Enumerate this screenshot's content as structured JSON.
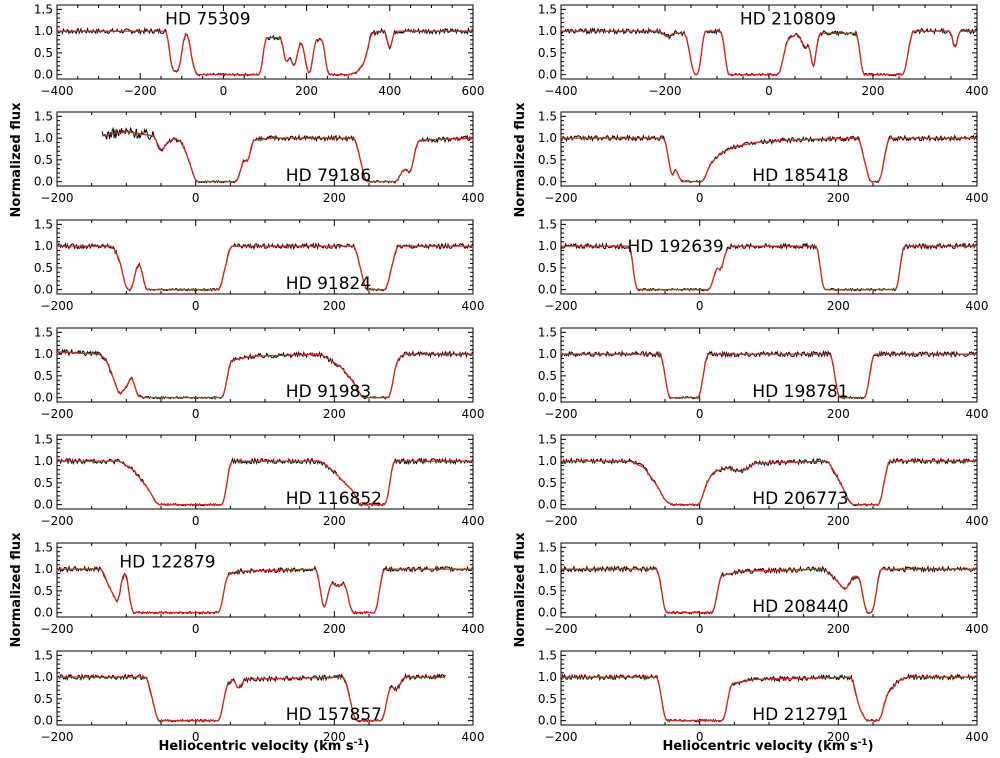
{
  "figure": {
    "ylabel": "Normalized flux",
    "xlabel_main": "Heliocentric velocity (km s",
    "xlabel_sup": "-1",
    "xlabel_end": ")"
  },
  "colors": {
    "observed": "#000000",
    "model": "#d42a1c",
    "axes": "#000000"
  },
  "chart_data": [
    {
      "type": "line",
      "star": "HD 75309",
      "col": 0,
      "row": 0,
      "xlim": [
        -400,
        600
      ],
      "xticks": [
        -400,
        -200,
        0,
        200,
        400,
        600
      ],
      "ylim": [
        -0.1,
        1.6
      ],
      "yticks": [
        0.0,
        0.5,
        1.0,
        1.5
      ],
      "profile": [
        [
          -400,
          1.0
        ],
        [
          -135,
          1.0
        ],
        [
          -125,
          0.15
        ],
        [
          -115,
          0.05
        ],
        [
          -105,
          0.15
        ],
        [
          -95,
          0.9
        ],
        [
          -85,
          0.95
        ],
        [
          -75,
          0.3
        ],
        [
          -65,
          0.0
        ],
        [
          90,
          0.0
        ],
        [
          100,
          0.85
        ],
        [
          140,
          0.85
        ],
        [
          150,
          0.2
        ],
        [
          160,
          0.45
        ],
        [
          170,
          0.1
        ],
        [
          180,
          0.6
        ],
        [
          190,
          0.8
        ],
        [
          200,
          0.1
        ],
        [
          210,
          0.0
        ],
        [
          220,
          0.8
        ],
        [
          240,
          0.8
        ],
        [
          250,
          0.0
        ],
        [
          300,
          0.0
        ],
        [
          320,
          0.05
        ],
        [
          340,
          0.3
        ],
        [
          355,
          0.95
        ],
        [
          380,
          1.0
        ],
        [
          390,
          1.0
        ],
        [
          400,
          0.5
        ],
        [
          410,
          1.0
        ],
        [
          600,
          1.0
        ]
      ]
    },
    {
      "type": "line",
      "star": "HD 210809",
      "col": 1,
      "row": 0,
      "xlim": [
        -400,
        400
      ],
      "xticks": [
        -400,
        -200,
        0,
        200,
        400
      ],
      "ylim": [
        -0.1,
        1.6
      ],
      "yticks": [
        0.0,
        0.5,
        1.0,
        1.5
      ],
      "profile": [
        [
          -400,
          1.0
        ],
        [
          -210,
          1.0
        ],
        [
          -195,
          0.85
        ],
        [
          -185,
          0.95
        ],
        [
          -160,
          0.95
        ],
        [
          -145,
          0.0
        ],
        [
          -135,
          0.0
        ],
        [
          -125,
          1.0
        ],
        [
          -90,
          1.0
        ],
        [
          -80,
          0.0
        ],
        [
          20,
          0.0
        ],
        [
          35,
          0.8
        ],
        [
          55,
          0.95
        ],
        [
          70,
          0.6
        ],
        [
          78,
          0.7
        ],
        [
          85,
          0.0
        ],
        [
          95,
          0.95
        ],
        [
          170,
          0.95
        ],
        [
          180,
          0.0
        ],
        [
          260,
          0.0
        ],
        [
          275,
          1.0
        ],
        [
          350,
          1.0
        ],
        [
          358,
          0.5
        ],
        [
          365,
          1.0
        ],
        [
          400,
          1.0
        ]
      ]
    },
    {
      "type": "line",
      "star": "HD 79186",
      "col": 0,
      "row": 1,
      "xlim": [
        -200,
        400
      ],
      "xticks": [
        -200,
        0,
        200,
        400
      ],
      "ylim": [
        -0.1,
        1.6
      ],
      "yticks": [
        0.0,
        0.5,
        1.0,
        1.5
      ],
      "profile": [
        [
          -135,
          1.05
        ],
        [
          -120,
          1.1
        ],
        [
          -100,
          1.15
        ],
        [
          -80,
          1.1
        ],
        [
          -60,
          1.05
        ],
        [
          -50,
          0.7
        ],
        [
          -40,
          0.9
        ],
        [
          -30,
          1.0
        ],
        [
          -20,
          0.9
        ],
        [
          -10,
          0.5
        ],
        [
          0,
          0.0
        ],
        [
          60,
          0.0
        ],
        [
          70,
          0.55
        ],
        [
          75,
          0.4
        ],
        [
          82,
          0.95
        ],
        [
          110,
          1.0
        ],
        [
          230,
          1.0
        ],
        [
          245,
          0.0
        ],
        [
          290,
          0.0
        ],
        [
          300,
          0.3
        ],
        [
          310,
          0.2
        ],
        [
          320,
          0.95
        ],
        [
          400,
          1.0
        ]
      ]
    },
    {
      "type": "line",
      "star": "HD 185418",
      "col": 1,
      "row": 1,
      "xlim": [
        -200,
        400
      ],
      "xticks": [
        -200,
        0,
        200,
        400
      ],
      "ylim": [
        -0.1,
        1.6
      ],
      "yticks": [
        0.0,
        0.5,
        1.0,
        1.5
      ],
      "profile": [
        [
          -200,
          1.0
        ],
        [
          -50,
          1.0
        ],
        [
          -40,
          0.05
        ],
        [
          -35,
          0.35
        ],
        [
          -30,
          0.1
        ],
        [
          -25,
          0.0
        ],
        [
          5,
          0.0
        ],
        [
          15,
          0.4
        ],
        [
          30,
          0.65
        ],
        [
          50,
          0.8
        ],
        [
          80,
          0.9
        ],
        [
          120,
          0.95
        ],
        [
          160,
          0.97
        ],
        [
          230,
          1.0
        ],
        [
          245,
          0.0
        ],
        [
          260,
          0.0
        ],
        [
          272,
          1.0
        ],
        [
          400,
          1.0
        ]
      ]
    },
    {
      "type": "line",
      "star": "HD 91824",
      "col": 0,
      "row": 2,
      "xlim": [
        -200,
        400
      ],
      "xticks": [
        -200,
        0,
        200,
        400
      ],
      "ylim": [
        -0.1,
        1.6
      ],
      "yticks": [
        0.0,
        0.5,
        1.0,
        1.5
      ],
      "profile": [
        [
          -200,
          1.0
        ],
        [
          -120,
          1.0
        ],
        [
          -110,
          0.7
        ],
        [
          -100,
          0.0
        ],
        [
          -92,
          0.0
        ],
        [
          -85,
          0.55
        ],
        [
          -80,
          0.6
        ],
        [
          -72,
          0.0
        ],
        [
          35,
          0.0
        ],
        [
          50,
          1.0
        ],
        [
          230,
          1.0
        ],
        [
          245,
          0.0
        ],
        [
          275,
          0.0
        ],
        [
          290,
          1.0
        ],
        [
          400,
          1.0
        ]
      ]
    },
    {
      "type": "line",
      "star": "HD 192639",
      "col": 1,
      "row": 2,
      "xlim": [
        -200,
        400
      ],
      "xticks": [
        -200,
        0,
        200,
        400
      ],
      "ylim": [
        -0.1,
        1.6
      ],
      "yticks": [
        0.0,
        0.5,
        1.0,
        1.5
      ],
      "profile": [
        [
          -200,
          1.0
        ],
        [
          -100,
          1.0
        ],
        [
          -92,
          0.0
        ],
        [
          15,
          0.0
        ],
        [
          25,
          0.55
        ],
        [
          30,
          0.4
        ],
        [
          38,
          0.9
        ],
        [
          45,
          1.0
        ],
        [
          170,
          1.0
        ],
        [
          178,
          0.0
        ],
        [
          285,
          0.0
        ],
        [
          293,
          1.0
        ],
        [
          400,
          1.0
        ]
      ]
    },
    {
      "type": "line",
      "star": "HD 91983",
      "col": 0,
      "row": 3,
      "xlim": [
        -200,
        400
      ],
      "xticks": [
        -200,
        0,
        200,
        400
      ],
      "ylim": [
        -0.1,
        1.6
      ],
      "yticks": [
        0.0,
        0.5,
        1.0,
        1.5
      ],
      "profile": [
        [
          -200,
          1.05
        ],
        [
          -140,
          1.0
        ],
        [
          -130,
          0.9
        ],
        [
          -120,
          0.5
        ],
        [
          -110,
          0.05
        ],
        [
          -100,
          0.25
        ],
        [
          -92,
          0.5
        ],
        [
          -84,
          0.05
        ],
        [
          -76,
          0.0
        ],
        [
          40,
          0.0
        ],
        [
          50,
          0.85
        ],
        [
          80,
          0.95
        ],
        [
          180,
          1.0
        ],
        [
          190,
          0.9
        ],
        [
          210,
          0.7
        ],
        [
          230,
          0.3
        ],
        [
          240,
          0.0
        ],
        [
          280,
          0.0
        ],
        [
          290,
          0.85
        ],
        [
          300,
          1.0
        ],
        [
          400,
          1.0
        ]
      ]
    },
    {
      "type": "line",
      "star": "HD 198781",
      "col": 1,
      "row": 3,
      "xlim": [
        -200,
        400
      ],
      "xticks": [
        -200,
        0,
        200,
        400
      ],
      "ylim": [
        -0.1,
        1.6
      ],
      "yticks": [
        0.0,
        0.5,
        1.0,
        1.5
      ],
      "profile": [
        [
          -200,
          1.0
        ],
        [
          -55,
          1.0
        ],
        [
          -45,
          0.0
        ],
        [
          0,
          0.0
        ],
        [
          10,
          1.0
        ],
        [
          190,
          1.0
        ],
        [
          200,
          0.0
        ],
        [
          240,
          0.0
        ],
        [
          250,
          1.0
        ],
        [
          400,
          1.0
        ]
      ]
    },
    {
      "type": "line",
      "star": "HD 116852",
      "col": 0,
      "row": 4,
      "xlim": [
        -200,
        400
      ],
      "xticks": [
        -200,
        0,
        200,
        400
      ],
      "ylim": [
        -0.1,
        1.6
      ],
      "yticks": [
        0.0,
        0.5,
        1.0,
        1.5
      ],
      "profile": [
        [
          -200,
          1.0
        ],
        [
          -110,
          1.0
        ],
        [
          -90,
          0.8
        ],
        [
          -70,
          0.4
        ],
        [
          -55,
          0.0
        ],
        [
          40,
          0.0
        ],
        [
          50,
          1.0
        ],
        [
          180,
          1.0
        ],
        [
          200,
          0.75
        ],
        [
          215,
          0.5
        ],
        [
          228,
          0.3
        ],
        [
          235,
          0.0
        ],
        [
          275,
          0.0
        ],
        [
          285,
          1.0
        ],
        [
          400,
          1.0
        ]
      ]
    },
    {
      "type": "line",
      "star": "HD 206773",
      "col": 1,
      "row": 4,
      "xlim": [
        -200,
        400
      ],
      "xticks": [
        -200,
        0,
        200,
        400
      ],
      "ylim": [
        -0.1,
        1.6
      ],
      "yticks": [
        0.0,
        0.5,
        1.0,
        1.5
      ],
      "profile": [
        [
          -200,
          1.0
        ],
        [
          -100,
          1.0
        ],
        [
          -80,
          0.85
        ],
        [
          -60,
          0.4
        ],
        [
          -50,
          0.1
        ],
        [
          -40,
          0.0
        ],
        [
          0,
          0.0
        ],
        [
          10,
          0.5
        ],
        [
          20,
          0.75
        ],
        [
          40,
          0.85
        ],
        [
          60,
          0.75
        ],
        [
          80,
          0.95
        ],
        [
          185,
          1.0
        ],
        [
          200,
          0.6
        ],
        [
          215,
          0.1
        ],
        [
          220,
          0.0
        ],
        [
          260,
          0.0
        ],
        [
          272,
          1.0
        ],
        [
          400,
          1.0
        ]
      ]
    },
    {
      "type": "line",
      "star": "HD 122879",
      "col": 0,
      "row": 5,
      "xlim": [
        -200,
        400
      ],
      "xticks": [
        -200,
        0,
        200,
        400
      ],
      "ylim": [
        -0.1,
        1.6
      ],
      "yticks": [
        0.0,
        0.5,
        1.0,
        1.5
      ],
      "profile": [
        [
          -200,
          1.0
        ],
        [
          -135,
          1.0
        ],
        [
          -125,
          0.6
        ],
        [
          -112,
          0.2
        ],
        [
          -105,
          0.9
        ],
        [
          -100,
          0.9
        ],
        [
          -92,
          0.0
        ],
        [
          35,
          0.0
        ],
        [
          45,
          0.85
        ],
        [
          60,
          0.95
        ],
        [
          175,
          1.0
        ],
        [
          185,
          0.0
        ],
        [
          195,
          0.7
        ],
        [
          205,
          0.6
        ],
        [
          215,
          0.7
        ],
        [
          225,
          0.0
        ],
        [
          260,
          0.0
        ],
        [
          270,
          1.0
        ],
        [
          400,
          1.0
        ]
      ]
    },
    {
      "type": "line",
      "star": "HD 208440",
      "col": 1,
      "row": 5,
      "xlim": [
        -200,
        400
      ],
      "xticks": [
        -200,
        0,
        200,
        400
      ],
      "ylim": [
        -0.1,
        1.6
      ],
      "yticks": [
        0.0,
        0.5,
        1.0,
        1.5
      ],
      "profile": [
        [
          -200,
          1.0
        ],
        [
          -60,
          1.0
        ],
        [
          -50,
          0.0
        ],
        [
          20,
          0.0
        ],
        [
          30,
          0.85
        ],
        [
          60,
          0.95
        ],
        [
          180,
          1.0
        ],
        [
          200,
          0.7
        ],
        [
          210,
          0.5
        ],
        [
          220,
          0.8
        ],
        [
          230,
          0.85
        ],
        [
          240,
          0.0
        ],
        [
          250,
          0.0
        ],
        [
          260,
          1.0
        ],
        [
          400,
          1.0
        ]
      ]
    },
    {
      "type": "line",
      "star": "HD 157857",
      "col": 0,
      "row": 6,
      "xlim": [
        -200,
        400
      ],
      "xticks": [
        -200,
        0,
        200,
        400
      ],
      "ylim": [
        -0.1,
        1.6
      ],
      "yticks": [
        0.0,
        0.5,
        1.0,
        1.5
      ],
      "profile": [
        [
          -200,
          1.0
        ],
        [
          -70,
          1.0
        ],
        [
          -55,
          0.0
        ],
        [
          35,
          0.0
        ],
        [
          45,
          0.85
        ],
        [
          55,
          0.95
        ],
        [
          62,
          0.7
        ],
        [
          70,
          0.95
        ],
        [
          215,
          1.0
        ],
        [
          230,
          0.0
        ],
        [
          270,
          0.0
        ],
        [
          280,
          0.8
        ],
        [
          290,
          0.7
        ],
        [
          300,
          1.0
        ],
        [
          360,
          1.0
        ]
      ]
    },
    {
      "type": "line",
      "star": "HD 212791",
      "col": 1,
      "row": 6,
      "xlim": [
        -200,
        400
      ],
      "xticks": [
        -200,
        0,
        200,
        400
      ],
      "ylim": [
        -0.1,
        1.6
      ],
      "yticks": [
        0.0,
        0.5,
        1.0,
        1.5
      ],
      "profile": [
        [
          -200,
          1.0
        ],
        [
          -60,
          1.0
        ],
        [
          -50,
          0.0
        ],
        [
          35,
          0.0
        ],
        [
          45,
          0.85
        ],
        [
          80,
          0.95
        ],
        [
          220,
          1.0
        ],
        [
          230,
          0.3
        ],
        [
          240,
          0.0
        ],
        [
          260,
          0.0
        ],
        [
          270,
          0.6
        ],
        [
          285,
          0.9
        ],
        [
          300,
          1.0
        ],
        [
          400,
          1.0
        ]
      ]
    }
  ]
}
